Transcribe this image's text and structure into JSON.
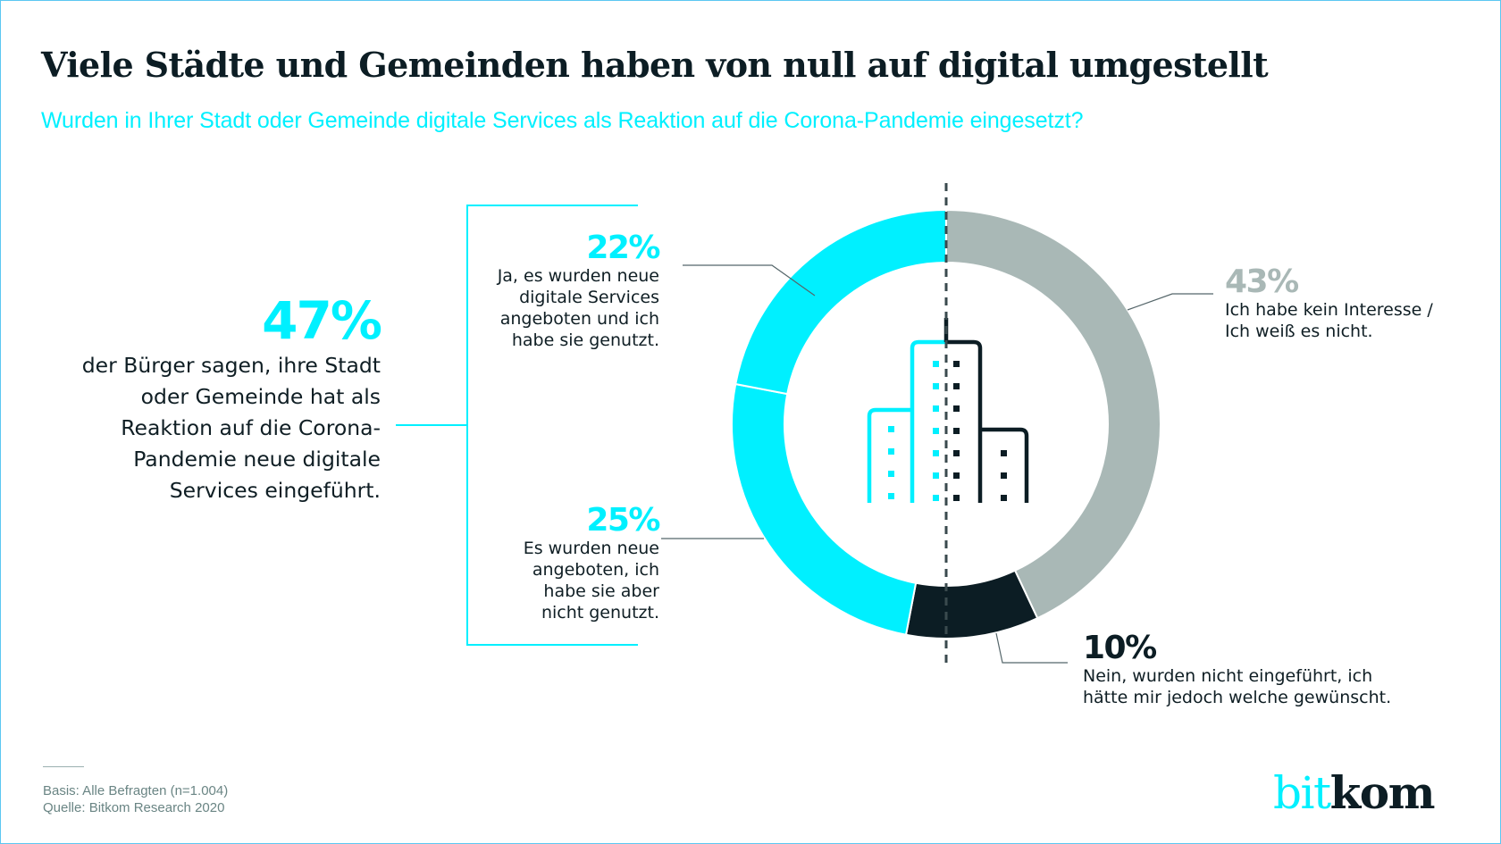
{
  "header": {
    "title": "Viele Städte und Gemeinden haben von null auf digital umgestellt",
    "subtitle": "Wurden in Ihrer Stadt oder Gemeinde digitale Services als Reaktion auf die Corona-Pandemie eingesetzt?"
  },
  "summary": {
    "percent": "47%",
    "lines": [
      "der Bürger sagen, ihre Stadt",
      "oder Gemeinde hat als",
      "Reaktion auf die Corona-",
      "Pandemie neue digitale",
      "Services eingeführt."
    ]
  },
  "colors": {
    "cyan": "#00f0ff",
    "grey": "#a9b8b6",
    "dark": "#0c1d24",
    "frame": "#5bc7f2"
  },
  "chart_data": {
    "type": "pie",
    "variant": "donut",
    "title": "Wurden in Ihrer Stadt oder Gemeinde digitale Services als Reaktion auf die Corona-Pandemie eingesetzt?",
    "unit": "%",
    "direction": "clockwise from top",
    "slices": [
      {
        "label": "Ich habe kein Interesse / Ich weiß es nicht.",
        "value": 43,
        "display": "43%",
        "color": "#a9b8b6"
      },
      {
        "label": "Nein, wurden nicht eingeführt, ich hätte mir jedoch welche gewünscht.",
        "value": 10,
        "display": "10%",
        "color": "#0c1d24"
      },
      {
        "label": "Es wurden neue angeboten, ich habe sie aber nicht genutzt.",
        "value": 25,
        "display": "25%",
        "color": "#00f0ff"
      },
      {
        "label": "Ja, es wurden neue digitale Services angeboten und ich habe sie genutzt.",
        "value": 22,
        "display": "22%",
        "color": "#00f0ff"
      }
    ],
    "grouped_annotation": {
      "slices": [
        "22%",
        "25%"
      ],
      "total": "47%"
    }
  },
  "labels": {
    "s22": {
      "pct": "22%",
      "lines": [
        "Ja, es wurden neue",
        "digitale Services",
        "angeboten und ich",
        "habe sie genutzt."
      ]
    },
    "s25": {
      "pct": "25%",
      "lines": [
        "Es wurden neue",
        "angeboten, ich",
        "habe sie aber",
        "nicht genutzt."
      ]
    },
    "s43": {
      "pct": "43%",
      "lines": [
        "Ich habe kein Interesse /",
        "Ich weiß es nicht."
      ]
    },
    "s10": {
      "pct": "10%",
      "lines": [
        "Nein, wurden nicht eingeführt, ich",
        "hätte mir jedoch welche gewünscht."
      ]
    }
  },
  "footer": {
    "basis": "Basis: Alle Befragten (n=1.004)",
    "source": "Quelle: Bitkom Research 2020"
  },
  "logo": {
    "part1": "bit",
    "part2": "kom"
  },
  "center_icon": "city-buildings-icon"
}
